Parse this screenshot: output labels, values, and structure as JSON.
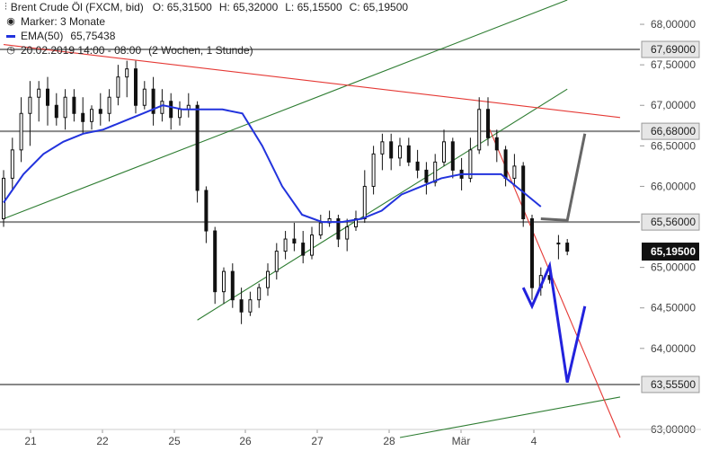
{
  "header": {
    "instrument": "Brent Crude Öl (FXCM, bid)",
    "open": "O: 65,31500",
    "high": "H: 65,32000",
    "low": "L: 65,15500",
    "close": "C: 65,19500",
    "marker": "Marker: 3 Monate",
    "ema_label": "EMA(50)",
    "ema_value": "65,75438",
    "date_range": "20.02.2019 14:00 - 08:00",
    "period": "(2 Wochen, 1 Stunde)"
  },
  "colors": {
    "candle": "#111111",
    "ema": "#2233dd",
    "support": "#888888",
    "trend_up": "#2e7d32",
    "trend_down": "#e53935",
    "projection_up": "#666666",
    "projection_down": "#2222dd",
    "current_price_box": "#111111"
  },
  "chart_data": {
    "type": "candlestick",
    "ylim": [
      63.0,
      68.3
    ],
    "y_ticks": [
      "68,00000",
      "67,50000",
      "67,00000",
      "66,50000",
      "66,00000",
      "65,00000",
      "64,50000",
      "64,00000",
      "63,00000"
    ],
    "x_labels": [
      "21",
      "22",
      "25",
      "26",
      "27",
      "28",
      "Mär",
      "4"
    ],
    "levels": [
      {
        "value": 67.69,
        "label": "67,69000"
      },
      {
        "value": 66.68,
        "label": "66,68000"
      },
      {
        "value": 65.56,
        "label": "65,56000"
      },
      {
        "value": 63.555,
        "label": "63,55500"
      }
    ],
    "current_price": {
      "value": 65.195,
      "label": "65,19500"
    },
    "ema": [
      65.8,
      66.15,
      66.4,
      66.55,
      66.65,
      66.7,
      66.8,
      66.9,
      67.0,
      66.95,
      66.95,
      66.95,
      66.9,
      66.5,
      66.0,
      65.65,
      65.56,
      65.56,
      65.6,
      65.7,
      65.9,
      66.0,
      66.1,
      66.15,
      66.15,
      66.15,
      65.95,
      65.75
    ],
    "candles": [
      {
        "o": 65.6,
        "h": 66.2,
        "l": 65.5,
        "c": 66.1
      },
      {
        "o": 66.1,
        "h": 66.6,
        "l": 65.95,
        "c": 66.45
      },
      {
        "o": 66.45,
        "h": 67.1,
        "l": 66.3,
        "c": 66.9
      },
      {
        "o": 66.9,
        "h": 67.3,
        "l": 66.5,
        "c": 67.1
      },
      {
        "o": 67.1,
        "h": 67.3,
        "l": 66.8,
        "c": 67.2
      },
      {
        "o": 67.2,
        "h": 67.35,
        "l": 66.75,
        "c": 67.0
      },
      {
        "o": 67.0,
        "h": 67.15,
        "l": 66.75,
        "c": 66.85
      },
      {
        "o": 66.85,
        "h": 67.2,
        "l": 66.7,
        "c": 67.1
      },
      {
        "o": 67.1,
        "h": 67.2,
        "l": 66.8,
        "c": 66.9
      },
      {
        "o": 66.9,
        "h": 67.1,
        "l": 66.65,
        "c": 66.8
      },
      {
        "o": 66.8,
        "h": 67.0,
        "l": 66.7,
        "c": 66.95
      },
      {
        "o": 66.95,
        "h": 67.15,
        "l": 66.75,
        "c": 66.9
      },
      {
        "o": 66.9,
        "h": 67.2,
        "l": 66.8,
        "c": 67.1
      },
      {
        "o": 67.1,
        "h": 67.5,
        "l": 67.0,
        "c": 67.35
      },
      {
        "o": 67.35,
        "h": 67.55,
        "l": 67.1,
        "c": 67.45
      },
      {
        "o": 67.45,
        "h": 67.55,
        "l": 66.9,
        "c": 67.0
      },
      {
        "o": 67.0,
        "h": 67.3,
        "l": 66.95,
        "c": 67.2
      },
      {
        "o": 67.2,
        "h": 67.35,
        "l": 66.75,
        "c": 66.9
      },
      {
        "o": 66.9,
        "h": 67.2,
        "l": 66.8,
        "c": 67.05
      },
      {
        "o": 67.05,
        "h": 67.15,
        "l": 66.7,
        "c": 66.85
      },
      {
        "o": 66.85,
        "h": 67.05,
        "l": 66.75,
        "c": 66.95
      },
      {
        "o": 66.95,
        "h": 67.15,
        "l": 66.85,
        "c": 67.0
      },
      {
        "o": 67.0,
        "h": 67.05,
        "l": 65.8,
        "c": 65.95
      },
      {
        "o": 65.95,
        "h": 66.0,
        "l": 65.3,
        "c": 65.45
      },
      {
        "o": 65.45,
        "h": 65.5,
        "l": 64.55,
        "c": 64.7
      },
      {
        "o": 64.7,
        "h": 65.0,
        "l": 64.55,
        "c": 64.95
      },
      {
        "o": 64.95,
        "h": 65.05,
        "l": 64.5,
        "c": 64.6
      },
      {
        "o": 64.6,
        "h": 64.75,
        "l": 64.3,
        "c": 64.45
      },
      {
        "o": 64.45,
        "h": 64.7,
        "l": 64.4,
        "c": 64.6
      },
      {
        "o": 64.6,
        "h": 64.8,
        "l": 64.5,
        "c": 64.75
      },
      {
        "o": 64.75,
        "h": 65.05,
        "l": 64.65,
        "c": 64.95
      },
      {
        "o": 64.95,
        "h": 65.3,
        "l": 64.85,
        "c": 65.2
      },
      {
        "o": 65.2,
        "h": 65.45,
        "l": 65.1,
        "c": 65.35
      },
      {
        "o": 65.35,
        "h": 65.55,
        "l": 65.2,
        "c": 65.3
      },
      {
        "o": 65.3,
        "h": 65.45,
        "l": 65.05,
        "c": 65.15
      },
      {
        "o": 65.15,
        "h": 65.5,
        "l": 65.1,
        "c": 65.4
      },
      {
        "o": 65.4,
        "h": 65.65,
        "l": 65.35,
        "c": 65.55
      },
      {
        "o": 65.55,
        "h": 65.7,
        "l": 65.5,
        "c": 65.6
      },
      {
        "o": 65.6,
        "h": 65.65,
        "l": 65.25,
        "c": 65.35
      },
      {
        "o": 65.35,
        "h": 65.6,
        "l": 65.2,
        "c": 65.5
      },
      {
        "o": 65.5,
        "h": 65.7,
        "l": 65.45,
        "c": 65.6
      },
      {
        "o": 65.6,
        "h": 66.2,
        "l": 65.55,
        "c": 66.0
      },
      {
        "o": 66.0,
        "h": 66.5,
        "l": 65.9,
        "c": 66.4
      },
      {
        "o": 66.4,
        "h": 66.65,
        "l": 66.2,
        "c": 66.55
      },
      {
        "o": 66.55,
        "h": 66.65,
        "l": 66.2,
        "c": 66.35
      },
      {
        "o": 66.35,
        "h": 66.6,
        "l": 66.25,
        "c": 66.5
      },
      {
        "o": 66.5,
        "h": 66.6,
        "l": 66.25,
        "c": 66.3
      },
      {
        "o": 66.3,
        "h": 66.45,
        "l": 66.1,
        "c": 66.2
      },
      {
        "o": 66.2,
        "h": 66.3,
        "l": 65.9,
        "c": 66.05
      },
      {
        "o": 66.05,
        "h": 66.4,
        "l": 66.0,
        "c": 66.3
      },
      {
        "o": 66.3,
        "h": 66.7,
        "l": 66.25,
        "c": 66.55
      },
      {
        "o": 66.55,
        "h": 66.6,
        "l": 66.1,
        "c": 66.2
      },
      {
        "o": 66.2,
        "h": 66.35,
        "l": 65.95,
        "c": 66.1
      },
      {
        "o": 66.1,
        "h": 66.6,
        "l": 66.05,
        "c": 66.45
      },
      {
        "o": 66.45,
        "h": 67.1,
        "l": 66.4,
        "c": 66.95
      },
      {
        "o": 66.95,
        "h": 67.1,
        "l": 66.5,
        "c": 66.6
      },
      {
        "o": 66.6,
        "h": 66.7,
        "l": 66.3,
        "c": 66.45
      },
      {
        "o": 66.45,
        "h": 66.5,
        "l": 66.0,
        "c": 66.1
      },
      {
        "o": 66.1,
        "h": 66.4,
        "l": 66.0,
        "c": 66.25
      },
      {
        "o": 66.25,
        "h": 66.3,
        "l": 65.5,
        "c": 65.6
      },
      {
        "o": 65.6,
        "h": 65.65,
        "l": 64.6,
        "c": 64.75
      },
      {
        "o": 64.75,
        "h": 65.0,
        "l": 64.65,
        "c": 64.9
      },
      {
        "o": 64.9,
        "h": 64.95,
        "l": 64.8,
        "c": 64.85
      },
      {
        "o": 65.3,
        "h": 65.4,
        "l": 65.1,
        "c": 65.3
      },
      {
        "o": 65.3,
        "h": 65.35,
        "l": 65.15,
        "c": 65.2
      }
    ],
    "trendlines": [
      {
        "name": "upper-channel",
        "color": "trend_up",
        "from": [
          0,
          65.6
        ],
        "to": [
          64,
          68.3
        ]
      },
      {
        "name": "lower-channel",
        "color": "trend_up",
        "from": [
          22,
          64.35
        ],
        "to": [
          64,
          67.2
        ]
      },
      {
        "name": "bottom-trend",
        "color": "trend_up",
        "from": [
          45,
          62.9
        ],
        "to": [
          70,
          63.4
        ]
      },
      {
        "name": "resistance",
        "color": "trend_down",
        "from": [
          0,
          67.75
        ],
        "to": [
          70,
          66.85
        ]
      },
      {
        "name": "decline",
        "color": "trend_down",
        "from": [
          55,
          66.75
        ],
        "to": [
          70,
          62.9
        ]
      }
    ],
    "projections": [
      {
        "name": "bull-scenario",
        "color": "projection_up",
        "points": [
          [
            61,
            65.6
          ],
          [
            64,
            65.58
          ],
          [
            66,
            66.65
          ]
        ]
      },
      {
        "name": "bear-scenario",
        "color": "projection_down",
        "points": [
          [
            59,
            64.75
          ],
          [
            60,
            64.52
          ],
          [
            62,
            65.02
          ],
          [
            64,
            63.58
          ],
          [
            66,
            64.52
          ]
        ]
      }
    ]
  }
}
